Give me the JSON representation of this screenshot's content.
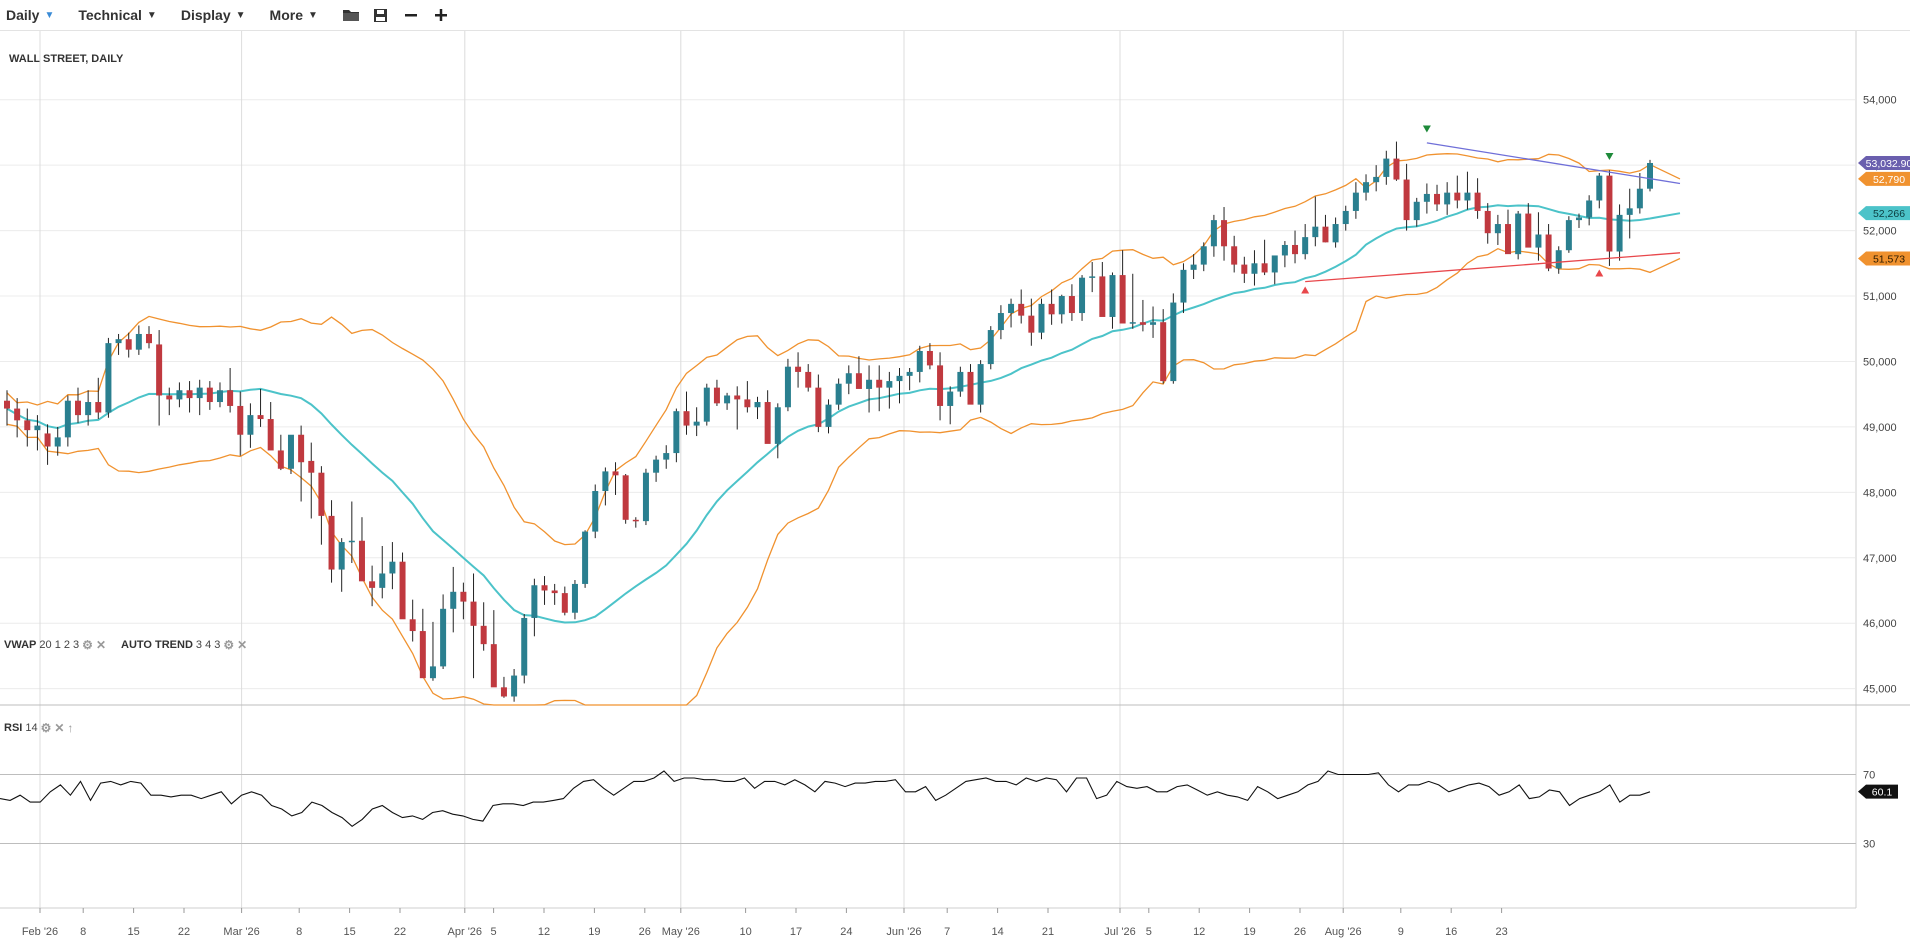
{
  "toolbar": {
    "menus": [
      "Daily",
      "Technical",
      "Display",
      "More"
    ],
    "icons": [
      "folder-icon",
      "save-icon",
      "zoom-out-icon",
      "zoom-in-icon"
    ]
  },
  "chart_title": "WALL STREET, DAILY",
  "indicators": {
    "vwap": {
      "name": "VWAP",
      "params": "20 1 2 3"
    },
    "autotrend": {
      "name": "AUTO TREND",
      "params": "3 4 3"
    },
    "rsi": {
      "name": "RSI",
      "params": "14"
    }
  },
  "colors": {
    "up": "#2a7f8f",
    "down": "#c0393f",
    "band": "#f0922f",
    "vwap": "#4cc3c9",
    "trend_upper": "#6f6fd8",
    "trend_lower": "#e8474b",
    "price_tag": "#6a5fae"
  },
  "chart_data": {
    "type": "candlestick",
    "title": "WALL STREET, DAILY",
    "price_axis": {
      "ticks": [
        45000,
        46000,
        47000,
        48000,
        49000,
        50000,
        51000,
        52000,
        53000,
        54000
      ],
      "tick_labels": [
        "45,000",
        "46,000",
        "47,000",
        "48,000",
        "49,000",
        "50,000",
        "51,000",
        "52,000",
        "53,000",
        "54,000"
      ],
      "range": [
        44750,
        55050
      ]
    },
    "date_axis": {
      "labels": [
        {
          "day": 2,
          "text": "Feb '26"
        },
        {
          "day": 8,
          "text": "8"
        },
        {
          "day": 15,
          "text": "15"
        },
        {
          "day": 22,
          "text": "22"
        },
        {
          "day": 30,
          "text": "Mar '26"
        },
        {
          "day": 38,
          "text": "8"
        },
        {
          "day": 45,
          "text": "15"
        },
        {
          "day": 52,
          "text": "22"
        },
        {
          "day": 61,
          "text": "Apr '26"
        },
        {
          "day": 65,
          "text": "5"
        },
        {
          "day": 72,
          "text": "12"
        },
        {
          "day": 79,
          "text": "19"
        },
        {
          "day": 86,
          "text": "26"
        },
        {
          "day": 91,
          "text": "May '26"
        },
        {
          "day": 100,
          "text": "10"
        },
        {
          "day": 107,
          "text": "17"
        },
        {
          "day": 114,
          "text": "24"
        },
        {
          "day": 122,
          "text": "Jun '26"
        },
        {
          "day": 128,
          "text": "7"
        },
        {
          "day": 135,
          "text": "14"
        },
        {
          "day": 142,
          "text": "21"
        },
        {
          "day": 152,
          "text": "Jul '26"
        },
        {
          "day": 156,
          "text": "5"
        },
        {
          "day": 163,
          "text": "12"
        },
        {
          "day": 170,
          "text": "19"
        },
        {
          "day": 177,
          "text": "26"
        },
        {
          "day": 183,
          "text": "Aug '26"
        },
        {
          "day": 191,
          "text": "9"
        },
        {
          "day": 198,
          "text": "16"
        },
        {
          "day": 205,
          "text": "23"
        }
      ]
    },
    "candles_ohlc": [
      [
        49400,
        49560,
        49020,
        49280
      ],
      [
        49280,
        49440,
        48840,
        49100
      ],
      [
        49100,
        49280,
        48700,
        48950
      ],
      [
        48950,
        49180,
        48640,
        49020
      ],
      [
        48900,
        49040,
        48420,
        48700
      ],
      [
        48700,
        49000,
        48560,
        48840
      ],
      [
        48840,
        49480,
        48700,
        49400
      ],
      [
        49400,
        49600,
        49060,
        49180
      ],
      [
        49180,
        49560,
        49020,
        49380
      ],
      [
        49380,
        49750,
        49120,
        49220
      ],
      [
        49220,
        50360,
        49140,
        50280
      ],
      [
        50280,
        50420,
        50100,
        50340
      ],
      [
        50340,
        50440,
        50060,
        50180
      ],
      [
        50180,
        50550,
        50100,
        50420
      ],
      [
        50420,
        50540,
        50200,
        50280
      ],
      [
        50260,
        50480,
        49020,
        49480
      ],
      [
        49480,
        49600,
        49180,
        49420
      ],
      [
        49420,
        49680,
        49300,
        49560
      ],
      [
        49560,
        49700,
        49220,
        49440
      ],
      [
        49440,
        49720,
        49180,
        49600
      ],
      [
        49600,
        49700,
        49260,
        49380
      ],
      [
        49380,
        49680,
        49300,
        49560
      ],
      [
        49560,
        49900,
        49220,
        49320
      ],
      [
        49320,
        49540,
        48560,
        48880
      ],
      [
        48880,
        49360,
        48680,
        49180
      ],
      [
        49180,
        49580,
        49000,
        49120
      ],
      [
        49120,
        49380,
        48740,
        48640
      ],
      [
        48640,
        48880,
        48340,
        48360
      ],
      [
        48360,
        48760,
        48280,
        48880
      ],
      [
        48880,
        49020,
        47860,
        48460
      ],
      [
        48480,
        48760,
        47600,
        48300
      ],
      [
        48300,
        48400,
        47200,
        47640
      ],
      [
        47640,
        47880,
        46620,
        46820
      ],
      [
        46820,
        47300,
        46480,
        47240
      ],
      [
        47240,
        47860,
        46920,
        47260
      ],
      [
        47260,
        47620,
        46820,
        46640
      ],
      [
        46640,
        46880,
        46260,
        46540
      ],
      [
        46540,
        47180,
        46380,
        46760
      ],
      [
        46760,
        47240,
        46520,
        46940
      ],
      [
        46940,
        47080,
        46340,
        46060
      ],
      [
        46060,
        46360,
        45720,
        45880
      ],
      [
        45880,
        46220,
        45500,
        45160
      ],
      [
        45160,
        46020,
        45120,
        45340
      ],
      [
        45340,
        46440,
        45300,
        46220
      ],
      [
        46220,
        46860,
        45860,
        46480
      ],
      [
        46480,
        46620,
        46060,
        46330
      ],
      [
        46330,
        46760,
        45160,
        45960
      ],
      [
        45960,
        46320,
        45580,
        45680
      ],
      [
        45680,
        46200,
        45500,
        45020
      ],
      [
        45020,
        45180,
        44860,
        44880
      ],
      [
        44880,
        45300,
        44800,
        45200
      ],
      [
        45200,
        46140,
        45080,
        46080
      ],
      [
        46080,
        46680,
        45800,
        46580
      ],
      [
        46580,
        46720,
        46280,
        46500
      ],
      [
        46500,
        46600,
        46280,
        46460
      ],
      [
        46460,
        46560,
        46120,
        46160
      ],
      [
        46160,
        46660,
        46060,
        46600
      ],
      [
        46600,
        47420,
        46540,
        47400
      ],
      [
        47400,
        48120,
        47300,
        48020
      ],
      [
        48020,
        48380,
        47800,
        48320
      ],
      [
        48320,
        48460,
        47960,
        48260
      ],
      [
        48260,
        48280,
        47520,
        47580
      ],
      [
        47580,
        47620,
        47460,
        47560
      ],
      [
        47560,
        48360,
        47500,
        48300
      ],
      [
        48300,
        48560,
        48160,
        48500
      ],
      [
        48500,
        48720,
        48360,
        48600
      ],
      [
        48600,
        49280,
        48460,
        49240
      ],
      [
        49240,
        49540,
        48880,
        49020
      ],
      [
        49020,
        49300,
        48860,
        49080
      ],
      [
        49080,
        49660,
        49020,
        49600
      ],
      [
        49600,
        49720,
        49320,
        49360
      ],
      [
        49360,
        49520,
        49260,
        49480
      ],
      [
        49480,
        49620,
        48960,
        49420
      ],
      [
        49420,
        49700,
        49220,
        49300
      ],
      [
        49300,
        49460,
        49120,
        49380
      ],
      [
        49380,
        49560,
        48900,
        48740
      ],
      [
        48740,
        49360,
        48520,
        49300
      ],
      [
        49300,
        50040,
        49240,
        49920
      ],
      [
        49920,
        50140,
        49600,
        49840
      ],
      [
        49840,
        49960,
        49540,
        49600
      ],
      [
        49600,
        49800,
        48920,
        49000
      ],
      [
        49000,
        49420,
        48900,
        49340
      ],
      [
        49340,
        49740,
        49260,
        49660
      ],
      [
        49660,
        49940,
        49500,
        49820
      ],
      [
        49820,
        50080,
        49620,
        49580
      ],
      [
        49580,
        49940,
        49220,
        49720
      ],
      [
        49720,
        49940,
        49240,
        49600
      ],
      [
        49600,
        49840,
        49280,
        49700
      ],
      [
        49700,
        49900,
        49360,
        49780
      ],
      [
        49780,
        49900,
        49560,
        49840
      ],
      [
        49840,
        50240,
        49680,
        50160
      ],
      [
        50160,
        50280,
        49880,
        49940
      ],
      [
        49940,
        50140,
        49100,
        49320
      ],
      [
        49320,
        49620,
        49040,
        49540
      ],
      [
        49540,
        49920,
        49460,
        49840
      ],
      [
        49840,
        49960,
        49440,
        49340
      ],
      [
        49340,
        50020,
        49220,
        49960
      ],
      [
        49960,
        50540,
        49880,
        50480
      ],
      [
        50480,
        50860,
        50340,
        50740
      ],
      [
        50740,
        50960,
        50520,
        50880
      ],
      [
        50880,
        51100,
        50580,
        50700
      ],
      [
        50700,
        50960,
        50240,
        50440
      ],
      [
        50440,
        50960,
        50340,
        50880
      ],
      [
        50880,
        51100,
        50560,
        50720
      ],
      [
        50720,
        51020,
        50580,
        51000
      ],
      [
        51000,
        51180,
        50620,
        50740
      ],
      [
        50740,
        51320,
        50620,
        51280
      ],
      [
        51280,
        51520,
        51060,
        51300
      ],
      [
        51300,
        51520,
        50900,
        50680
      ],
      [
        50680,
        51360,
        50500,
        51320
      ],
      [
        51320,
        51700,
        51060,
        50580
      ],
      [
        50580,
        51340,
        50500,
        50600
      ],
      [
        50600,
        50940,
        50460,
        50560
      ],
      [
        50560,
        50840,
        50360,
        50600
      ],
      [
        50600,
        50800,
        49660,
        49700
      ],
      [
        49700,
        51040,
        49660,
        50900
      ],
      [
        50900,
        51500,
        50740,
        51400
      ],
      [
        51400,
        51640,
        51260,
        51480
      ],
      [
        51480,
        51820,
        51380,
        51760
      ],
      [
        51760,
        52240,
        51600,
        52160
      ],
      [
        52160,
        52360,
        51540,
        51760
      ],
      [
        51760,
        51920,
        51360,
        51480
      ],
      [
        51480,
        51600,
        51200,
        51340
      ],
      [
        51340,
        51700,
        51160,
        51500
      ],
      [
        51500,
        51860,
        51320,
        51360
      ],
      [
        51360,
        51600,
        51180,
        51620
      ],
      [
        51620,
        51840,
        51440,
        51780
      ],
      [
        51780,
        52000,
        51500,
        51640
      ],
      [
        51640,
        52100,
        51560,
        51900
      ],
      [
        51900,
        52520,
        51760,
        52060
      ],
      [
        52060,
        52240,
        51820,
        51820
      ],
      [
        51820,
        52200,
        51740,
        52100
      ],
      [
        52100,
        52380,
        52000,
        52300
      ],
      [
        52300,
        52740,
        52180,
        52580
      ],
      [
        52580,
        52860,
        52460,
        52740
      ],
      [
        52740,
        53000,
        52600,
        52820
      ],
      [
        52820,
        53220,
        52700,
        53100
      ],
      [
        53100,
        53360,
        52760,
        52780
      ],
      [
        52780,
        53020,
        52000,
        52160
      ],
      [
        52160,
        52500,
        52060,
        52440
      ],
      [
        52440,
        52720,
        52260,
        52560
      ],
      [
        52560,
        52700,
        52300,
        52400
      ],
      [
        52400,
        52740,
        52240,
        52580
      ],
      [
        52580,
        52840,
        52340,
        52460
      ],
      [
        52460,
        52900,
        52320,
        52580
      ],
      [
        52580,
        52800,
        52180,
        52300
      ],
      [
        52300,
        52420,
        51800,
        51960
      ],
      [
        51960,
        52240,
        51780,
        52100
      ],
      [
        52100,
        52320,
        51700,
        51640
      ],
      [
        51640,
        52300,
        51560,
        52260
      ],
      [
        52260,
        52420,
        51880,
        51740
      ],
      [
        51740,
        52280,
        51540,
        51940
      ],
      [
        51940,
        52100,
        51380,
        51420
      ],
      [
        51420,
        51760,
        51340,
        51700
      ],
      [
        51700,
        52220,
        51660,
        52160
      ],
      [
        52160,
        52260,
        52040,
        52200
      ],
      [
        52200,
        52540,
        52080,
        52460
      ],
      [
        52460,
        52880,
        52340,
        52840
      ],
      [
        52840,
        52920,
        51460,
        51680
      ],
      [
        51680,
        52400,
        51540,
        52240
      ],
      [
        52240,
        52640,
        51880,
        52340
      ],
      [
        52340,
        52880,
        52260,
        52640
      ],
      [
        52640,
        53080,
        52600,
        53032.9
      ]
    ],
    "series": [
      {
        "name": "VWAP"
      },
      {
        "name": "AUTO TREND"
      }
    ],
    "last_values": {
      "price": 53032.9,
      "upper_band": 52790,
      "vwap": 52266,
      "lower_band": 51573
    },
    "last_labels": {
      "price": "53,032.90",
      "upper_band": "52,790",
      "vwap": "52,266",
      "lower_band": "51,573"
    },
    "rsi": {
      "name": "RSI",
      "period": 14,
      "levels": [
        70,
        30
      ],
      "level_labels": [
        "70",
        "30"
      ],
      "last_value": 60.1,
      "last_label": "60.1",
      "values": [
        56,
        55,
        58,
        54,
        54,
        60,
        64,
        58,
        66,
        55,
        65,
        66,
        64,
        66,
        65,
        58,
        58,
        57,
        58,
        58,
        56,
        58,
        60,
        53,
        58,
        60,
        58,
        52,
        50,
        46,
        48,
        54,
        52,
        48,
        45,
        40,
        44,
        50,
        52,
        48,
        45,
        46,
        44,
        48,
        49,
        47,
        46,
        44,
        43,
        52,
        53,
        53,
        52,
        54,
        54,
        55,
        56,
        62,
        66,
        67,
        62,
        58,
        62,
        66,
        66,
        68,
        72,
        66,
        68,
        68,
        67,
        67,
        66,
        66,
        68,
        62,
        66,
        66,
        64,
        67,
        64,
        60,
        66,
        65,
        63,
        65,
        65,
        66,
        66,
        67,
        60,
        60,
        63,
        55,
        58,
        62,
        66,
        67,
        68,
        66,
        66,
        64,
        68,
        66,
        68,
        67,
        60,
        68,
        68,
        56,
        58,
        66,
        63,
        62,
        63,
        60,
        60,
        63,
        64,
        61,
        58,
        60,
        58,
        57,
        55,
        63,
        60,
        56,
        58,
        60,
        64,
        66,
        72,
        70,
        70,
        70,
        70,
        71,
        64,
        60,
        64,
        64,
        66,
        64,
        60,
        62,
        64,
        65,
        63,
        58,
        60,
        64,
        56,
        57,
        61,
        60,
        52,
        56,
        58,
        60,
        64,
        54,
        58,
        58,
        60
      ]
    },
    "grid": true,
    "xlabel": "",
    "ylabel": ""
  }
}
